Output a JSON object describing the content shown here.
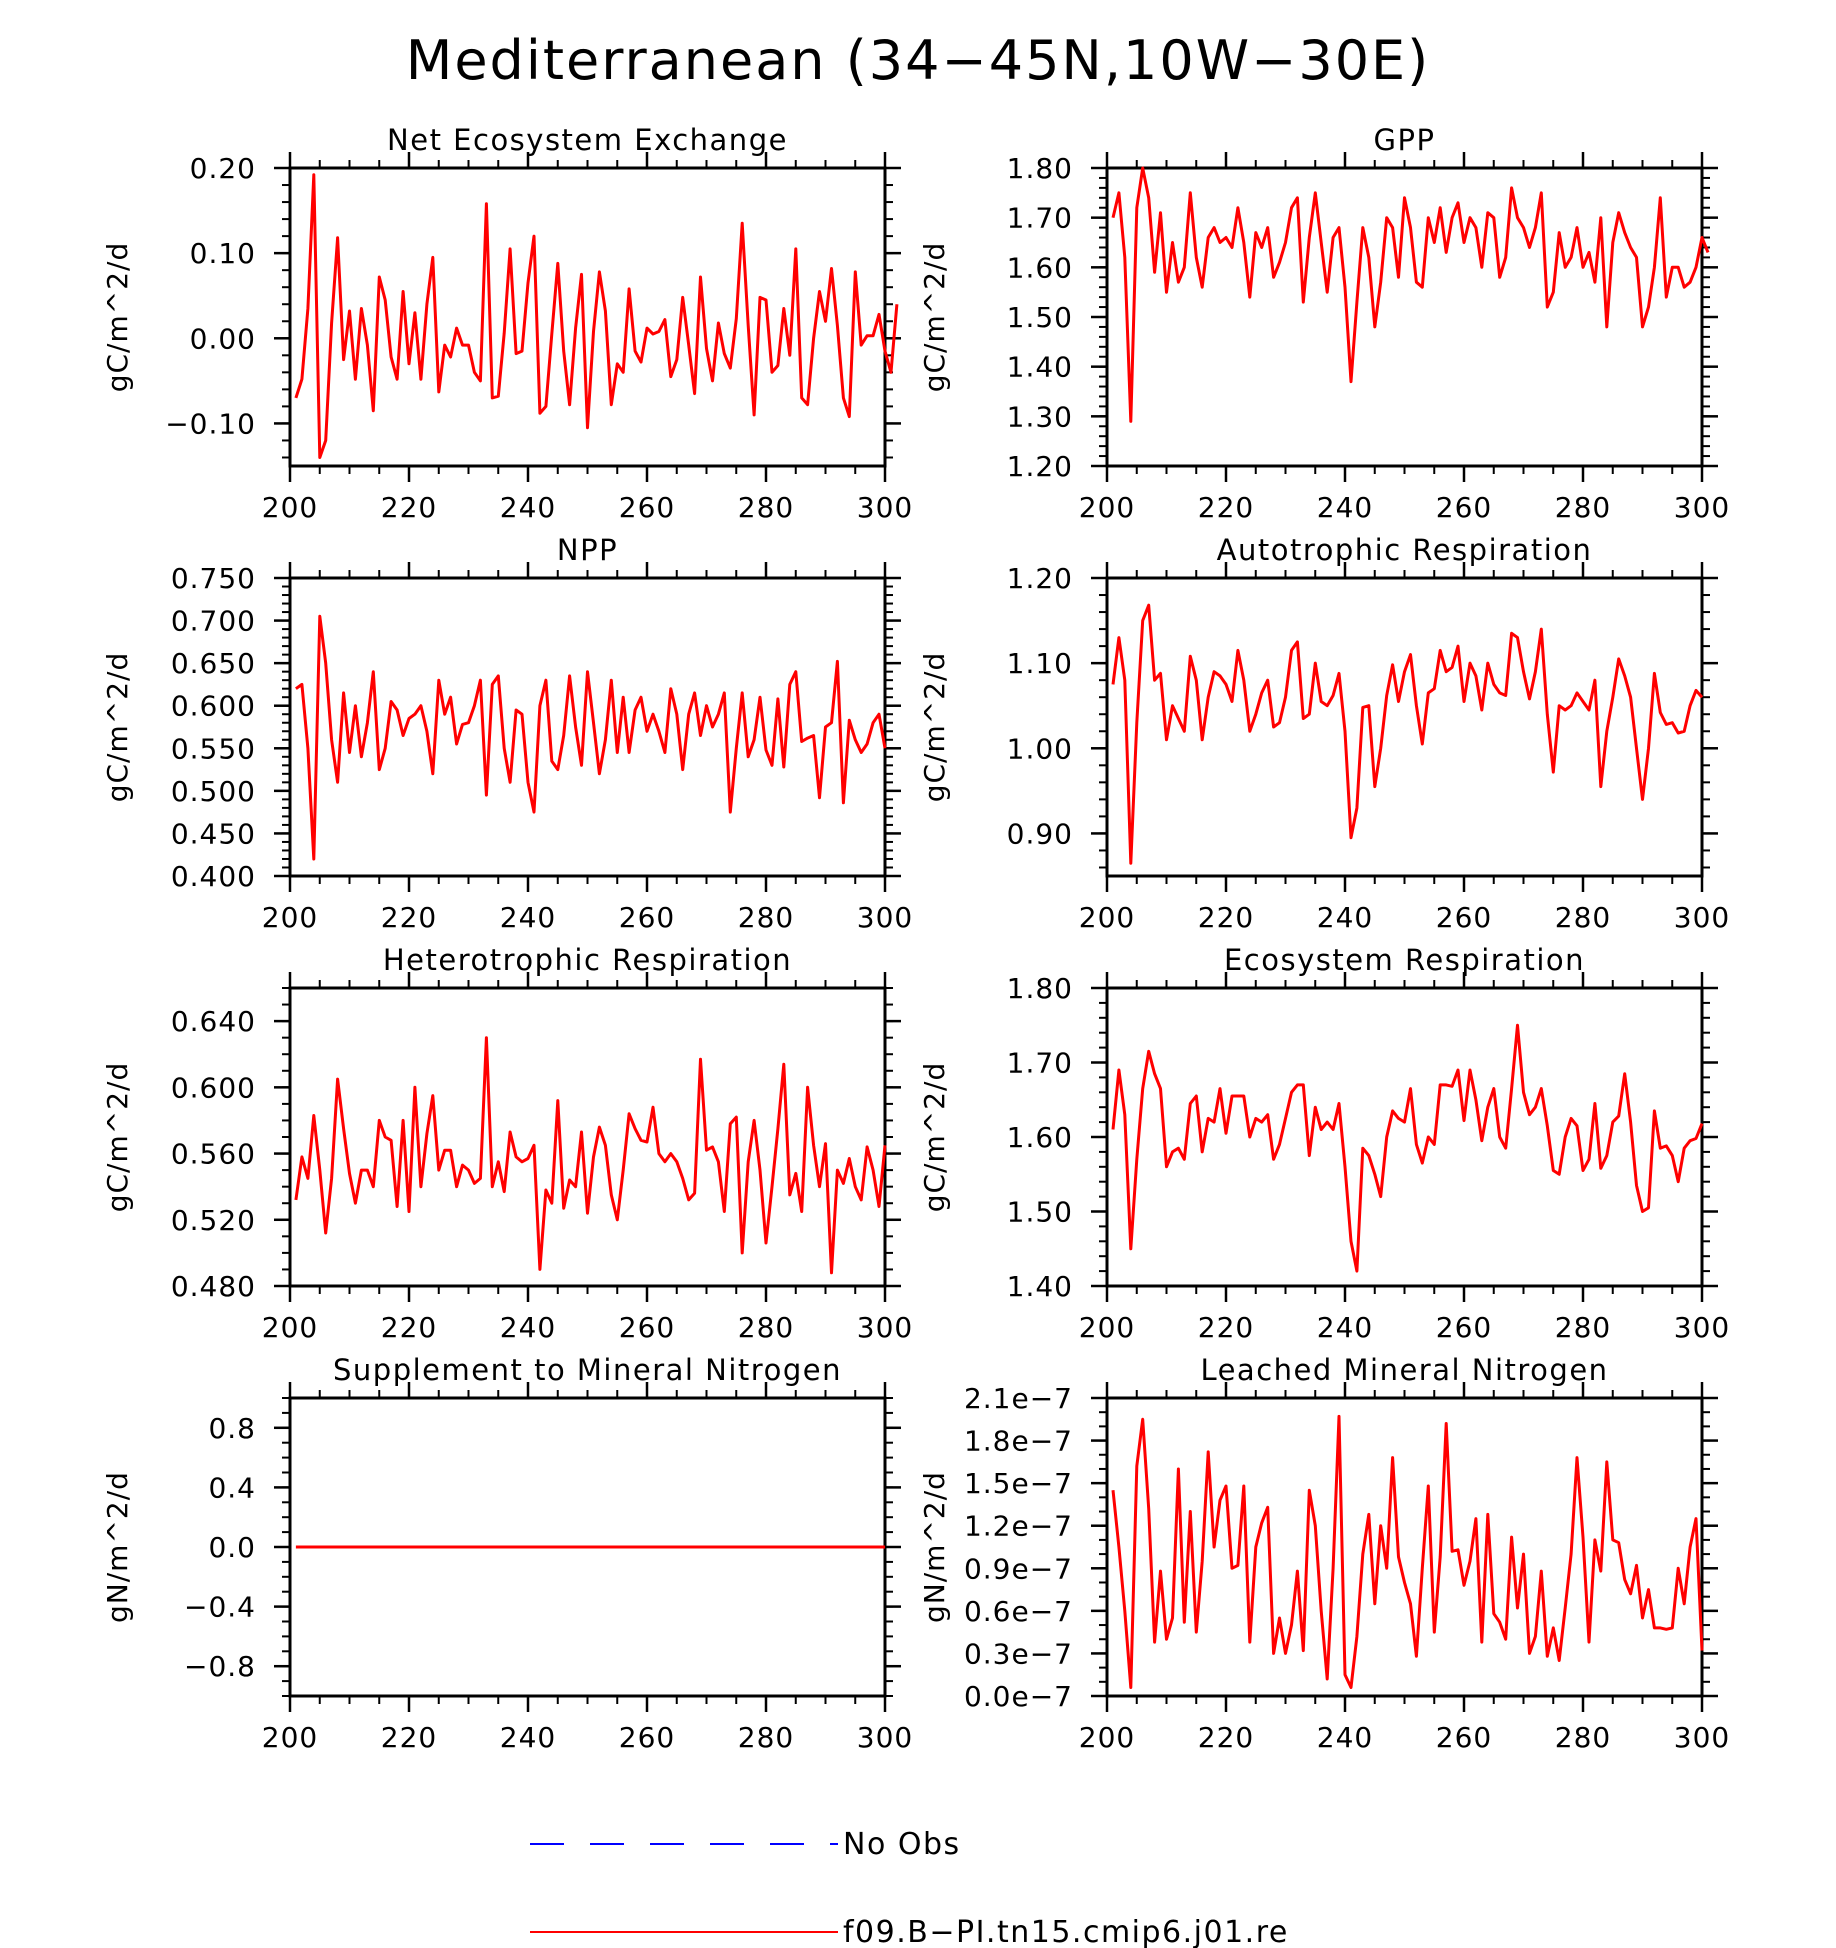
{
  "title": "Mediterranean (34−45N,10W−30E)",
  "colors": {
    "series": "#ff0000",
    "obs": "#0000ff"
  },
  "legend": {
    "items": [
      {
        "label": "No Obs",
        "style": "dashed",
        "color": "#0000ff"
      },
      {
        "label": "f09.B−PI.tn15.cmip6.j01.re",
        "style": "solid",
        "color": "#ff0000"
      }
    ]
  },
  "chart_data": [
    {
      "type": "line",
      "title": "Net Ecosystem Exchange",
      "ylabel": "gC/m^2/d",
      "xlim": [
        200,
        300
      ],
      "ylim": [
        -0.15,
        0.2
      ],
      "xticks": [
        200,
        220,
        240,
        260,
        280,
        300
      ],
      "xtick_labels": [
        "200",
        "220",
        "240",
        "260",
        "280",
        "300"
      ],
      "yticks": [
        -0.1,
        0.0,
        0.1,
        0.2
      ],
      "ytick_labels": [
        "−0.10",
        "0.00",
        "0.10",
        "0.20"
      ],
      "y_minor": 0.02,
      "series": [
        {
          "x0": 201,
          "values": [
            -0.07,
            -0.048,
            0.035,
            0.192,
            -0.14,
            -0.12,
            0.018,
            0.118,
            -0.025,
            0.032,
            -0.048,
            0.035,
            -0.008,
            -0.085,
            0.072,
            0.045,
            -0.022,
            -0.048,
            0.055,
            -0.03,
            0.03,
            -0.048,
            0.04,
            0.095,
            -0.063,
            -0.008,
            -0.022,
            0.012,
            -0.008,
            -0.008,
            -0.04,
            -0.05,
            0.158,
            -0.07,
            -0.068,
            0.006,
            0.105,
            -0.018,
            -0.015,
            0.065,
            0.12,
            -0.088,
            -0.08,
            0.005,
            0.088,
            -0.015,
            -0.078,
            0.012,
            0.075,
            -0.105,
            0.008,
            0.078,
            0.032,
            -0.078,
            -0.03,
            -0.04,
            0.058,
            -0.015,
            -0.028,
            0.012,
            0.005,
            0.008,
            0.022,
            -0.045,
            -0.025,
            0.048,
            -0.008,
            -0.065,
            0.072,
            -0.012,
            -0.05,
            0.018,
            -0.018,
            -0.035,
            0.023,
            0.135,
            0.015,
            -0.09,
            0.048,
            0.045,
            -0.04,
            -0.032,
            0.035,
            -0.02,
            0.105,
            -0.07,
            -0.078,
            0.0,
            0.055,
            0.02,
            0.082,
            0.015,
            -0.07,
            -0.092,
            0.078,
            -0.008,
            0.003,
            0.003,
            0.028,
            -0.015,
            -0.04,
            0.04
          ]
        }
      ]
    },
    {
      "type": "line",
      "title": "GPP",
      "ylabel": "gC/m^2/d",
      "xlim": [
        200,
        300
      ],
      "ylim": [
        1.2,
        1.8
      ],
      "xticks": [
        200,
        220,
        240,
        260,
        280,
        300
      ],
      "xtick_labels": [
        "200",
        "220",
        "240",
        "260",
        "280",
        "300"
      ],
      "yticks": [
        1.2,
        1.3,
        1.4,
        1.5,
        1.6,
        1.7,
        1.8
      ],
      "ytick_labels": [
        "1.20",
        "1.30",
        "1.40",
        "1.50",
        "1.60",
        "1.70",
        "1.80"
      ],
      "y_minor": 0.02,
      "series": [
        {
          "x0": 201,
          "values": [
            1.7,
            1.75,
            1.62,
            1.29,
            1.72,
            1.8,
            1.74,
            1.59,
            1.71,
            1.55,
            1.65,
            1.57,
            1.6,
            1.75,
            1.62,
            1.56,
            1.66,
            1.68,
            1.65,
            1.66,
            1.64,
            1.72,
            1.65,
            1.54,
            1.67,
            1.64,
            1.68,
            1.58,
            1.61,
            1.65,
            1.72,
            1.74,
            1.53,
            1.66,
            1.75,
            1.65,
            1.55,
            1.66,
            1.68,
            1.56,
            1.37,
            1.53,
            1.68,
            1.62,
            1.48,
            1.57,
            1.7,
            1.68,
            1.58,
            1.74,
            1.68,
            1.57,
            1.56,
            1.7,
            1.65,
            1.72,
            1.63,
            1.7,
            1.73,
            1.65,
            1.7,
            1.68,
            1.6,
            1.71,
            1.7,
            1.58,
            1.62,
            1.76,
            1.7,
            1.68,
            1.64,
            1.68,
            1.75,
            1.52,
            1.55,
            1.67,
            1.6,
            1.62,
            1.68,
            1.6,
            1.63,
            1.57,
            1.7,
            1.48,
            1.65,
            1.71,
            1.67,
            1.64,
            1.62,
            1.48,
            1.52,
            1.6,
            1.74,
            1.54,
            1.6,
            1.6,
            1.56,
            1.57,
            1.6,
            1.66,
            1.63
          ]
        }
      ]
    },
    {
      "type": "line",
      "title": "NPP",
      "ylabel": "gC/m^2/d",
      "xlim": [
        200,
        300
      ],
      "ylim": [
        0.4,
        0.75
      ],
      "xticks": [
        200,
        220,
        240,
        260,
        280,
        300
      ],
      "xtick_labels": [
        "200",
        "220",
        "240",
        "260",
        "280",
        "300"
      ],
      "yticks": [
        0.4,
        0.45,
        0.5,
        0.55,
        0.6,
        0.65,
        0.7,
        0.75
      ],
      "ytick_labels": [
        "0.400",
        "0.450",
        "0.500",
        "0.550",
        "0.600",
        "0.650",
        "0.700",
        "0.750"
      ],
      "y_minor": 0.01,
      "series": [
        {
          "x0": 201,
          "values": [
            0.62,
            0.625,
            0.55,
            0.42,
            0.705,
            0.65,
            0.56,
            0.51,
            0.615,
            0.545,
            0.6,
            0.54,
            0.58,
            0.64,
            0.525,
            0.55,
            0.605,
            0.595,
            0.565,
            0.585,
            0.59,
            0.6,
            0.57,
            0.52,
            0.63,
            0.59,
            0.61,
            0.555,
            0.578,
            0.58,
            0.6,
            0.63,
            0.495,
            0.625,
            0.635,
            0.55,
            0.51,
            0.595,
            0.59,
            0.51,
            0.475,
            0.6,
            0.63,
            0.535,
            0.525,
            0.565,
            0.635,
            0.575,
            0.53,
            0.64,
            0.58,
            0.52,
            0.56,
            0.63,
            0.545,
            0.61,
            0.545,
            0.595,
            0.61,
            0.57,
            0.59,
            0.57,
            0.545,
            0.62,
            0.59,
            0.525,
            0.59,
            0.615,
            0.565,
            0.6,
            0.575,
            0.59,
            0.615,
            0.475,
            0.55,
            0.615,
            0.54,
            0.56,
            0.61,
            0.548,
            0.53,
            0.608,
            0.528,
            0.625,
            0.64,
            0.558,
            0.562,
            0.565,
            0.492,
            0.575,
            0.58,
            0.652,
            0.486,
            0.583,
            0.56,
            0.545,
            0.555,
            0.58,
            0.59,
            0.55
          ]
        }
      ]
    },
    {
      "type": "line",
      "title": "Autotrophic Respiration",
      "ylabel": "gC/m^2/d",
      "xlim": [
        200,
        300
      ],
      "ylim": [
        0.85,
        1.2
      ],
      "xticks": [
        200,
        220,
        240,
        260,
        280,
        300
      ],
      "xtick_labels": [
        "200",
        "220",
        "240",
        "260",
        "280",
        "300"
      ],
      "yticks": [
        0.9,
        1.0,
        1.1,
        1.2
      ],
      "ytick_labels": [
        "0.90",
        "1.00",
        "1.10",
        "1.20"
      ],
      "y_minor": 0.02,
      "series": [
        {
          "x0": 201,
          "values": [
            1.075,
            1.13,
            1.08,
            0.865,
            1.03,
            1.15,
            1.168,
            1.08,
            1.088,
            1.01,
            1.05,
            1.035,
            1.02,
            1.108,
            1.08,
            1.01,
            1.06,
            1.09,
            1.085,
            1.075,
            1.055,
            1.115,
            1.08,
            1.02,
            1.04,
            1.065,
            1.08,
            1.025,
            1.03,
            1.06,
            1.115,
            1.125,
            1.035,
            1.04,
            1.1,
            1.055,
            1.05,
            1.062,
            1.088,
            1.02,
            0.895,
            0.93,
            1.048,
            1.05,
            0.955,
            1.0,
            1.062,
            1.098,
            1.055,
            1.09,
            1.11,
            1.05,
            1.005,
            1.065,
            1.07,
            1.115,
            1.09,
            1.095,
            1.12,
            1.055,
            1.1,
            1.085,
            1.045,
            1.1,
            1.075,
            1.065,
            1.062,
            1.135,
            1.13,
            1.09,
            1.058,
            1.09,
            1.14,
            1.04,
            0.972,
            1.05,
            1.045,
            1.05,
            1.065,
            1.055,
            1.045,
            1.08,
            0.955,
            1.02,
            1.06,
            1.105,
            1.085,
            1.06,
            1.0,
            0.94,
            1.0,
            1.088,
            1.042,
            1.028,
            1.03,
            1.018,
            1.02,
            1.05,
            1.068,
            1.06
          ]
        }
      ]
    },
    {
      "type": "line",
      "title": "Heterotrophic Respiration",
      "ylabel": "gC/m^2/d",
      "xlim": [
        200,
        300
      ],
      "ylim": [
        0.48,
        0.66
      ],
      "xticks": [
        200,
        220,
        240,
        260,
        280,
        300
      ],
      "xtick_labels": [
        "200",
        "220",
        "240",
        "260",
        "280",
        "300"
      ],
      "yticks": [
        0.48,
        0.52,
        0.56,
        0.6,
        0.64
      ],
      "ytick_labels": [
        "0.480",
        "0.520",
        "0.560",
        "0.600",
        "0.640"
      ],
      "y_minor": 0.01,
      "series": [
        {
          "x0": 201,
          "values": [
            0.532,
            0.558,
            0.545,
            0.583,
            0.55,
            0.512,
            0.545,
            0.605,
            0.575,
            0.548,
            0.53,
            0.55,
            0.55,
            0.54,
            0.58,
            0.57,
            0.568,
            0.528,
            0.58,
            0.525,
            0.6,
            0.54,
            0.572,
            0.595,
            0.55,
            0.562,
            0.562,
            0.54,
            0.553,
            0.55,
            0.542,
            0.545,
            0.63,
            0.54,
            0.555,
            0.537,
            0.573,
            0.558,
            0.555,
            0.557,
            0.565,
            0.49,
            0.538,
            0.53,
            0.592,
            0.527,
            0.544,
            0.54,
            0.573,
            0.524,
            0.558,
            0.576,
            0.565,
            0.535,
            0.52,
            0.55,
            0.584,
            0.575,
            0.568,
            0.567,
            0.588,
            0.56,
            0.555,
            0.56,
            0.555,
            0.545,
            0.532,
            0.536,
            0.617,
            0.562,
            0.564,
            0.555,
            0.525,
            0.578,
            0.582,
            0.5,
            0.555,
            0.58,
            0.55,
            0.506,
            0.54,
            0.575,
            0.614,
            0.535,
            0.548,
            0.525,
            0.6,
            0.565,
            0.54,
            0.566,
            0.488,
            0.55,
            0.542,
            0.557,
            0.54,
            0.532,
            0.564,
            0.55,
            0.528,
            0.565
          ]
        }
      ]
    },
    {
      "type": "line",
      "title": "Ecosystem Respiration",
      "ylabel": "gC/m^2/d",
      "xlim": [
        200,
        300
      ],
      "ylim": [
        1.4,
        1.8
      ],
      "xticks": [
        200,
        220,
        240,
        260,
        280,
        300
      ],
      "xtick_labels": [
        "200",
        "220",
        "240",
        "260",
        "280",
        "300"
      ],
      "yticks": [
        1.4,
        1.5,
        1.6,
        1.7,
        1.8
      ],
      "ytick_labels": [
        "1.40",
        "1.50",
        "1.60",
        "1.70",
        "1.80"
      ],
      "y_minor": 0.02,
      "series": [
        {
          "x0": 201,
          "values": [
            1.61,
            1.69,
            1.63,
            1.45,
            1.57,
            1.665,
            1.715,
            1.685,
            1.665,
            1.56,
            1.58,
            1.585,
            1.57,
            1.645,
            1.655,
            1.58,
            1.625,
            1.62,
            1.665,
            1.605,
            1.655,
            1.655,
            1.655,
            1.6,
            1.625,
            1.62,
            1.63,
            1.57,
            1.59,
            1.625,
            1.66,
            1.67,
            1.67,
            1.575,
            1.64,
            1.61,
            1.62,
            1.61,
            1.645,
            1.56,
            1.46,
            1.42,
            1.585,
            1.575,
            1.55,
            1.52,
            1.6,
            1.635,
            1.625,
            1.62,
            1.665,
            1.59,
            1.565,
            1.6,
            1.59,
            1.67,
            1.67,
            1.668,
            1.69,
            1.622,
            1.69,
            1.65,
            1.595,
            1.64,
            1.665,
            1.6,
            1.585,
            1.665,
            1.75,
            1.66,
            1.63,
            1.64,
            1.665,
            1.615,
            1.555,
            1.55,
            1.6,
            1.625,
            1.615,
            1.555,
            1.57,
            1.645,
            1.558,
            1.575,
            1.62,
            1.628,
            1.685,
            1.62,
            1.535,
            1.5,
            1.505,
            1.635,
            1.585,
            1.588,
            1.575,
            1.54,
            1.585,
            1.595,
            1.598,
            1.618
          ]
        }
      ]
    },
    {
      "type": "line",
      "title": "Supplement to Mineral Nitrogen",
      "ylabel": "gN/m^2/d",
      "xlim": [
        200,
        300
      ],
      "ylim": [
        -1.0,
        1.0
      ],
      "xticks": [
        200,
        220,
        240,
        260,
        280,
        300
      ],
      "xtick_labels": [
        "200",
        "220",
        "240",
        "260",
        "280",
        "300"
      ],
      "yticks": [
        -0.8,
        -0.4,
        0.0,
        0.4,
        0.8
      ],
      "ytick_labels": [
        "−0.8",
        "−0.4",
        "0.0",
        "0.4",
        "0.8"
      ],
      "y_minor": 0.1,
      "series": [
        {
          "x": [
            201,
            300
          ],
          "values": [
            0.0,
            0.0
          ]
        }
      ]
    },
    {
      "type": "line",
      "title": "Leached Mineral Nitrogen",
      "ylabel": "gN/m^2/d",
      "xlim": [
        200,
        300
      ],
      "ylim": [
        0.0,
        2.1e-07
      ],
      "xticks": [
        200,
        220,
        240,
        260,
        280,
        300
      ],
      "xtick_labels": [
        "200",
        "220",
        "240",
        "260",
        "280",
        "300"
      ],
      "yticks": [
        0.0,
        3e-08,
        6e-08,
        9e-08,
        1.2e-07,
        1.5e-07,
        1.8e-07,
        2.1e-07
      ],
      "ytick_labels": [
        "0.0e−7",
        "0.3e−7",
        "0.6e−7",
        "0.9e−7",
        "1.2e−7",
        "1.5e−7",
        "1.8e−7",
        "2.1e−7"
      ],
      "y_minor": 1e-08,
      "series": [
        {
          "x0": 201,
          "values": [
            1.45e-07,
            1.05e-07,
            6e-08,
            6e-09,
            1.62e-07,
            1.95e-07,
            1.32e-07,
            3.8e-08,
            8.8e-08,
            4e-08,
            5.5e-08,
            1.6e-07,
            5.2e-08,
            1.3e-07,
            4.5e-08,
            9.5e-08,
            1.72e-07,
            1.05e-07,
            1.38e-07,
            1.48e-07,
            9e-08,
            9.2e-08,
            1.48e-07,
            3.8e-08,
            1.05e-07,
            1.22e-07,
            1.33e-07,
            3e-08,
            5.5e-08,
            3e-08,
            5e-08,
            8.8e-08,
            3.2e-08,
            1.45e-07,
            1.2e-07,
            6e-08,
            1.2e-08,
            9e-08,
            1.97e-07,
            1.5e-08,
            6e-09,
            4.2e-08,
            1e-07,
            1.28e-07,
            6.5e-08,
            1.2e-07,
            9e-08,
            1.68e-07,
            9.8e-08,
            8e-08,
            6.5e-08,
            2.8e-08,
            9e-08,
            1.48e-07,
            4.5e-08,
            9.8e-08,
            1.92e-07,
            1.02e-07,
            1.03e-07,
            7.8e-08,
            9.5e-08,
            1.25e-07,
            3.8e-08,
            1.28e-07,
            5.8e-08,
            5.2e-08,
            4e-08,
            1.12e-07,
            6.2e-08,
            1e-07,
            3e-08,
            4.2e-08,
            8.8e-08,
            2.8e-08,
            4.8e-08,
            2.5e-08,
            6.2e-08,
            1e-07,
            1.68e-07,
            1.12e-07,
            3.8e-08,
            1.1e-07,
            8.8e-08,
            1.65e-07,
            1.1e-07,
            1.08e-07,
            8.2e-08,
            7.2e-08,
            9.2e-08,
            5.5e-08,
            7.5e-08,
            4.8e-08,
            4.8e-08,
            4.7e-08,
            4.8e-08,
            9e-08,
            6.5e-08,
            1.05e-07,
            1.25e-07,
            3.2e-08
          ]
        }
      ]
    }
  ]
}
